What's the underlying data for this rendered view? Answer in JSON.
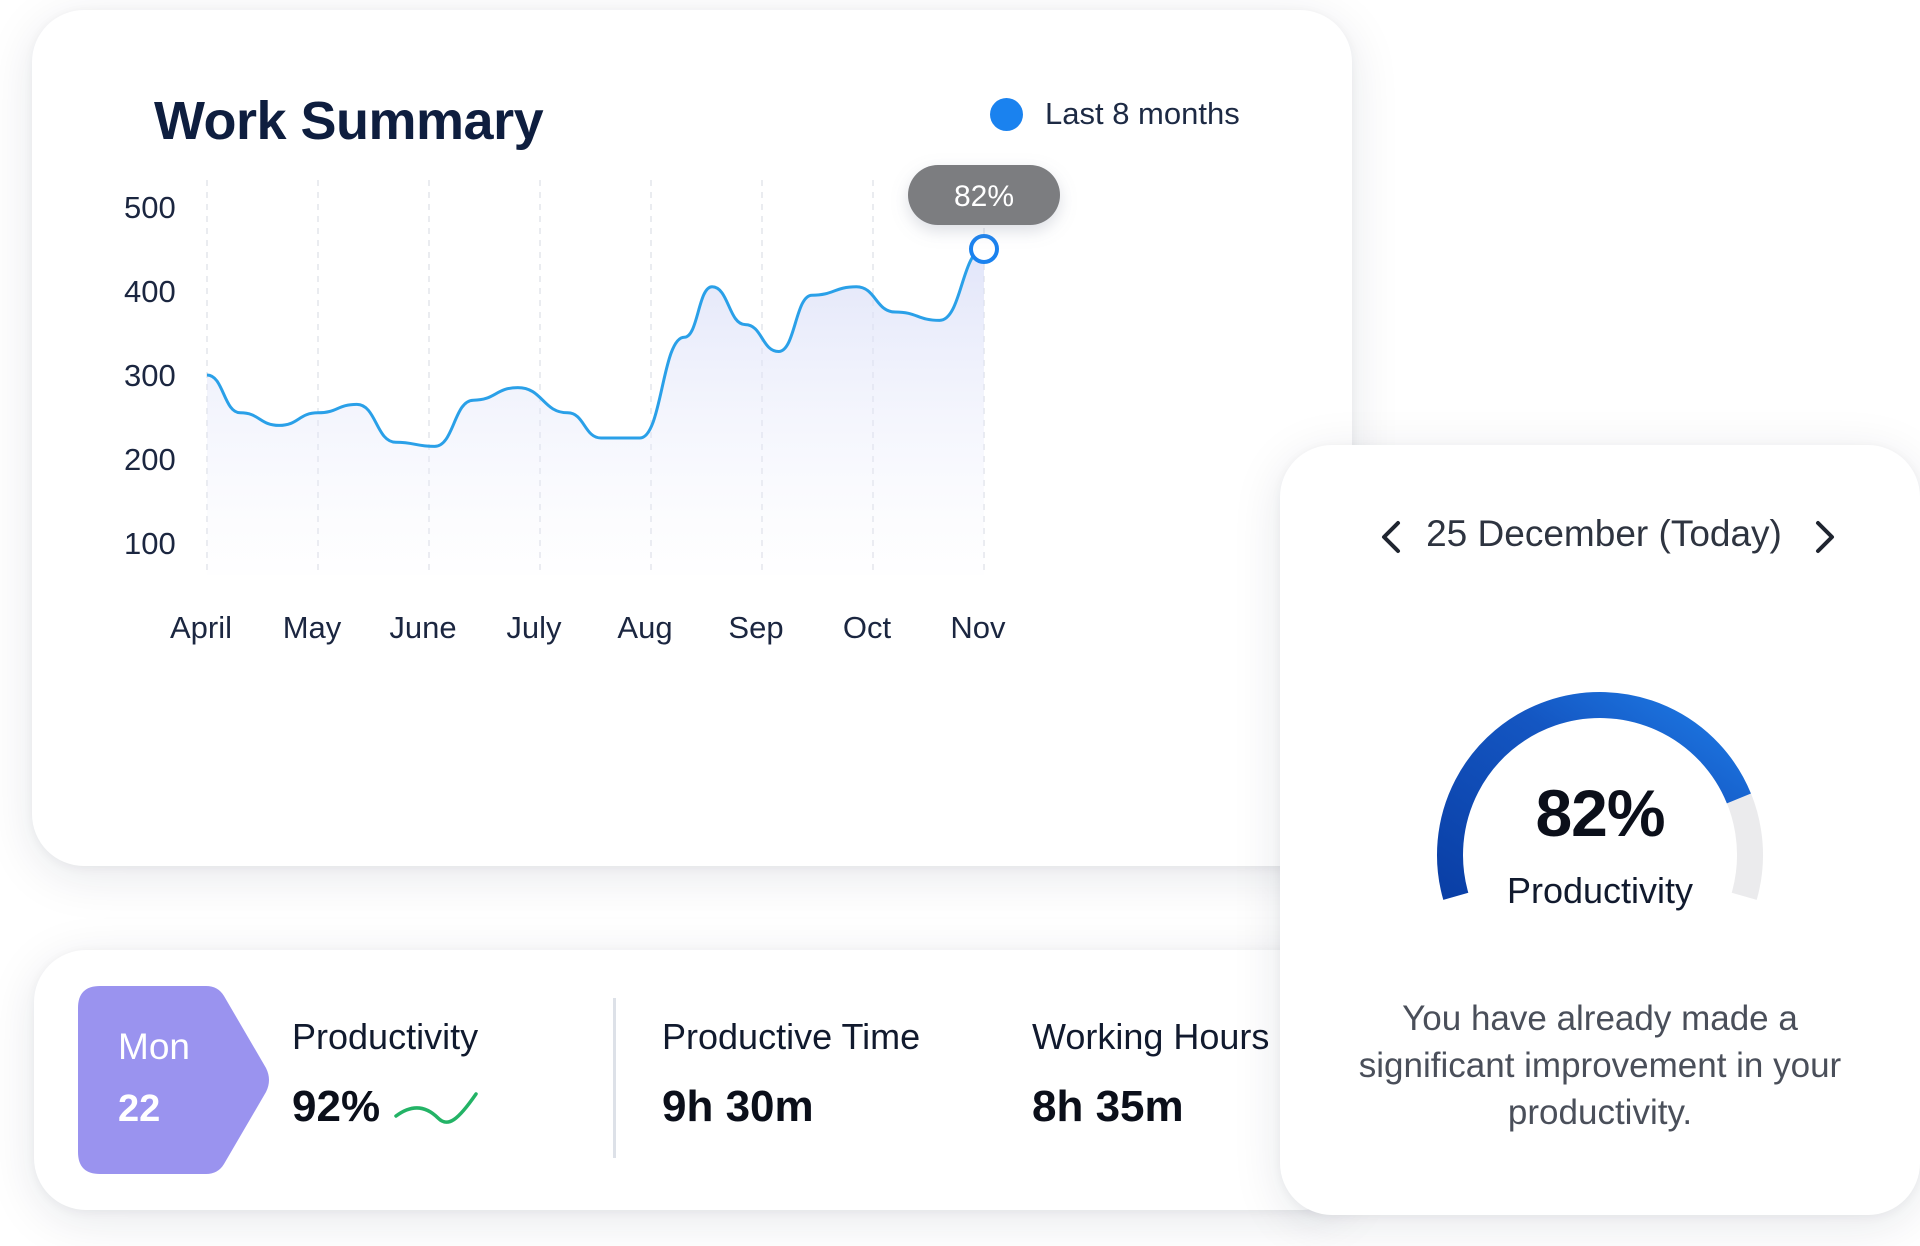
{
  "summary": {
    "title": "Work Summary",
    "legend_label": "Last 8 months",
    "legend_color": "#1a82ef",
    "tooltip_label": "82%"
  },
  "chart_data": {
    "type": "area",
    "title": "Work Summary",
    "xlabel": "",
    "ylabel": "",
    "categories": [
      "April",
      "May",
      "June",
      "July",
      "Aug",
      "Sep",
      "Oct",
      "Nov"
    ],
    "y_ticks": [
      500,
      400,
      300,
      200,
      100
    ],
    "ylim": [
      80,
      520
    ],
    "series": [
      {
        "name": "Last 8 months",
        "color": "#2aa0e8",
        "x": [
          0,
          0.3,
          0.65,
          1.0,
          1.35,
          1.7,
          2.05,
          2.4,
          2.8,
          3.25,
          3.55,
          3.9,
          4.3,
          4.55,
          4.85,
          5.15,
          5.45,
          5.85,
          6.2,
          6.6,
          7.0
        ],
        "y": [
          300,
          255,
          240,
          255,
          265,
          220,
          215,
          270,
          285,
          255,
          225,
          225,
          345,
          405,
          360,
          328,
          395,
          405,
          375,
          365,
          450
        ]
      }
    ],
    "highlight": {
      "x": 7.0,
      "y": 450,
      "label": "82%"
    },
    "grid": "vertical-dashed",
    "legend": "top-right"
  },
  "stats": {
    "day_name": "Mon",
    "day_number": "22",
    "badge_color": "#9a93ef",
    "items": [
      {
        "label": "Productivity",
        "value": "92%"
      },
      {
        "label": "Productive Time",
        "value": "9h 30m"
      },
      {
        "label": "Working Hours",
        "value": "8h 35m"
      }
    ]
  },
  "productivity_card": {
    "date": "25 December (Today)",
    "percent": "82%",
    "gauge_value": 0.82,
    "label": "Productivity",
    "message": "You have already made a significant improvement in your productivity."
  }
}
